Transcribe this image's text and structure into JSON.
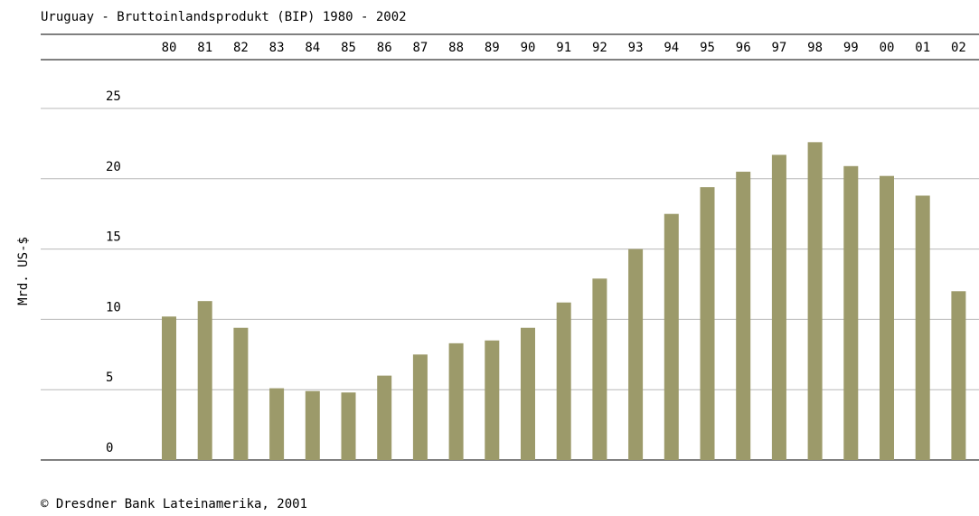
{
  "chart_data": {
    "type": "bar",
    "title": "Uruguay - Bruttoinlandsprodukt (BIP) 1980 - 2002",
    "y_label": "Mrd. US-$",
    "source": "© Dresdner Bank Lateinamerika, 2001",
    "categories": [
      "80",
      "81",
      "82",
      "83",
      "84",
      "85",
      "86",
      "87",
      "88",
      "89",
      "90",
      "91",
      "92",
      "93",
      "94",
      "95",
      "96",
      "97",
      "98",
      "99",
      "00",
      "01",
      "02"
    ],
    "values": [
      10.2,
      11.3,
      9.4,
      5.1,
      4.9,
      4.8,
      6.0,
      7.5,
      8.3,
      8.5,
      9.4,
      11.2,
      12.9,
      15.0,
      17.5,
      19.4,
      20.5,
      21.7,
      22.6,
      20.9,
      20.2,
      18.8,
      12.0
    ],
    "color": "#9c9a6a",
    "ylim": [
      0,
      25
    ],
    "yticks": [
      0,
      5,
      10,
      15,
      20,
      25
    ],
    "grid": true
  }
}
